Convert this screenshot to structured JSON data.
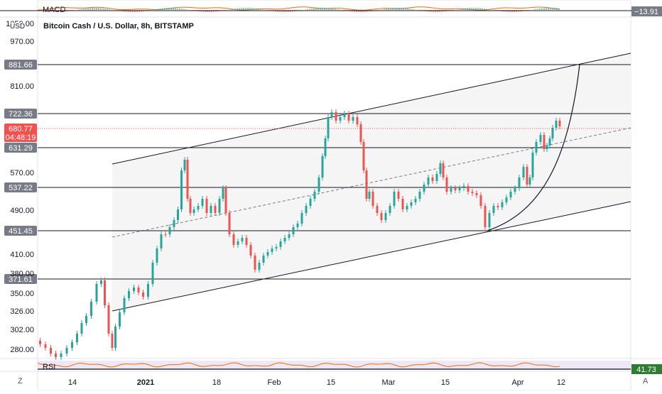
{
  "header": {
    "title": "Bitcoin Cash / U.S. Dollar, 8h, BITSTAMP",
    "currency": "USD"
  },
  "macd": {
    "label": "MACD",
    "value": "−13.91"
  },
  "rsi": {
    "label": "RSI",
    "value": "41.73"
  },
  "price_axis": {
    "ticks": [
      "1050.00",
      "970.00",
      "810.00",
      "570.00",
      "490.00",
      "410.00",
      "380.00",
      "350.00",
      "326.00",
      "302.00",
      "280.00"
    ],
    "levels": [
      {
        "label": "881.66",
        "kind": "level"
      },
      {
        "label": "722.36",
        "kind": "level"
      },
      {
        "label": "631.29",
        "kind": "level"
      },
      {
        "label": "537.22",
        "kind": "level"
      },
      {
        "label": "451.45",
        "kind": "level"
      },
      {
        "label": "371.61",
        "kind": "level"
      }
    ],
    "current_price": "680.77",
    "countdown": "04:48:19"
  },
  "time_axis": {
    "ticks": [
      "14",
      "2021",
      "18",
      "Feb",
      "15",
      "Mar",
      "15",
      "Apr",
      "12"
    ]
  },
  "corners": {
    "left": "Z",
    "right": "A"
  },
  "colors": {
    "up": "#26a69a",
    "down": "#ef5350",
    "current_price": "#ef5350",
    "rsi_tag": "#2e7d32",
    "level_tag": "#787b86"
  }
}
